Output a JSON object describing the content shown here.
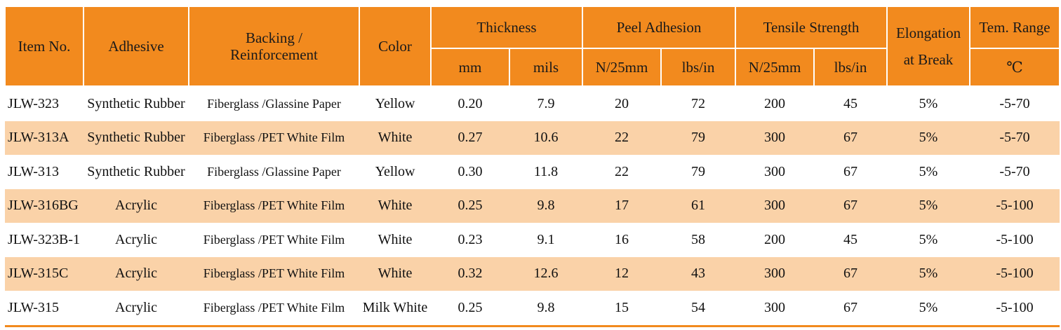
{
  "table": {
    "headers": {
      "item_no": "Item No.",
      "adhesive": "Adhesive",
      "backing_line1": "Backing /",
      "backing_line2": "Reinforcement",
      "color": "Color",
      "thickness": "Thickness",
      "peel_adhesion": "Peel Adhesion",
      "tensile_strength": "Tensile Strength",
      "elongation_line1": "Elongation",
      "elongation_line2": "at Break",
      "tem_range": "Tem. Range",
      "sub": {
        "mm": "mm",
        "mils": "mils",
        "peel_n": "N/25mm",
        "peel_lbs": "lbs/in",
        "tensile_n": "N/25mm",
        "tensile_lbs": "lbs/in",
        "celsius": "℃"
      }
    },
    "rows": [
      [
        "JLW-323",
        "Synthetic Rubber",
        "Fiberglass /Glassine Paper",
        "Yellow",
        "0.20",
        "7.9",
        "20",
        "72",
        "200",
        "45",
        "5%",
        "-5-70"
      ],
      [
        "JLW-313A",
        "Synthetic Rubber",
        "Fiberglass /PET White Film",
        "White",
        "0.27",
        "10.6",
        "22",
        "79",
        "300",
        "67",
        "5%",
        "-5-70"
      ],
      [
        "JLW-313",
        "Synthetic Rubber",
        "Fiberglass /Glassine Paper",
        "Yellow",
        "0.30",
        "11.8",
        "22",
        "79",
        "300",
        "67",
        "5%",
        "-5-70"
      ],
      [
        "JLW-316BG",
        "Acrylic",
        "Fiberglass /PET White Film",
        "White",
        "0.25",
        "9.8",
        "17",
        "61",
        "300",
        "67",
        "5%",
        "-5-100"
      ],
      [
        "JLW-323B-1",
        "Acrylic",
        "Fiberglass /PET White Film",
        "White",
        "0.23",
        "9.1",
        "16",
        "58",
        "200",
        "45",
        "5%",
        "-5-100"
      ],
      [
        "JLW-315C",
        "Acrylic",
        "Fiberglass /PET White Film",
        "White",
        "0.32",
        "12.6",
        "12",
        "43",
        "300",
        "67",
        "5%",
        "-5-100"
      ],
      [
        "JLW-315",
        "Acrylic",
        "Fiberglass /PET White Film",
        "Milk White",
        "0.25",
        "9.8",
        "15",
        "54",
        "300",
        "67",
        "5%",
        "-5-100"
      ]
    ]
  },
  "colors": {
    "header_bg": "#f28a1e",
    "alt_row_bg": "#fad2a8"
  }
}
